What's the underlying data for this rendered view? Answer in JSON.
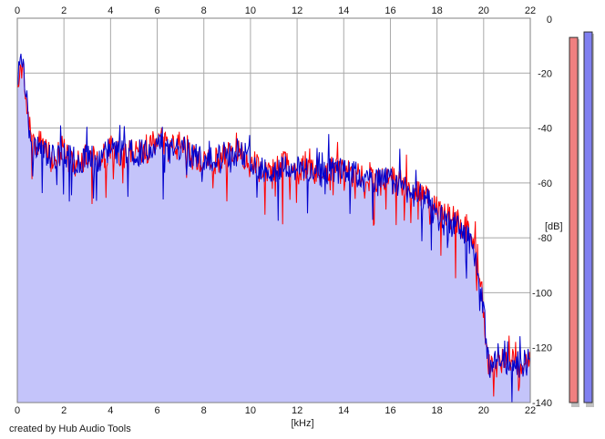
{
  "chart_data": {
    "type": "line",
    "xlabel": "[kHz]",
    "ylabel": "[dB]",
    "xlim": [
      0,
      22
    ],
    "ylim": [
      -140,
      0
    ],
    "x_ticks": [
      0,
      2,
      4,
      6,
      8,
      10,
      12,
      14,
      16,
      18,
      20,
      22
    ],
    "x_tick_labels": [
      "0",
      "2",
      "4",
      "6",
      "8",
      "10",
      "12",
      "14",
      "16",
      "18",
      "20",
      "22"
    ],
    "y_ticks": [
      0,
      -20,
      -40,
      -60,
      -80,
      -100,
      -120,
      -140
    ],
    "y_tick_labels": [
      "0",
      "-20",
      "-40",
      "-60",
      "-80",
      "-100",
      "-120",
      "-140"
    ],
    "grid": true,
    "x_axis_top_labels": true,
    "fill_color": "#c4c4fa",
    "series": [
      {
        "color": "#ff0000",
        "x": [
          0.0,
          0.2,
          0.4,
          0.6,
          0.8,
          1.0,
          1.5,
          2.0,
          2.5,
          3.0,
          3.5,
          4.0,
          4.5,
          5.0,
          5.5,
          6.0,
          6.5,
          7.0,
          7.5,
          8.0,
          8.5,
          9.0,
          9.5,
          10.0,
          10.5,
          11.0,
          11.5,
          12.0,
          12.5,
          13.0,
          13.5,
          14.0,
          14.5,
          15.0,
          15.5,
          16.0,
          16.5,
          17.0,
          17.5,
          18.0,
          18.5,
          19.0,
          19.3,
          19.6,
          19.8,
          20.0,
          20.2,
          20.5,
          21.0,
          21.5,
          22.0
        ],
        "values": [
          -25,
          -17,
          -30,
          -45,
          -48,
          -45,
          -52,
          -47,
          -53,
          -50,
          -52,
          -47,
          -50,
          -48,
          -50,
          -43,
          -48,
          -46,
          -51,
          -53,
          -52,
          -50,
          -48,
          -52,
          -56,
          -55,
          -53,
          -56,
          -54,
          -58,
          -55,
          -56,
          -57,
          -60,
          -58,
          -59,
          -60,
          -63,
          -65,
          -70,
          -72,
          -75,
          -78,
          -80,
          -90,
          -107,
          -125,
          -124,
          -126,
          -125,
          -126
        ]
      },
      {
        "color": "#0000cc",
        "x": [
          0.0,
          0.2,
          0.4,
          0.6,
          0.8,
          1.0,
          1.5,
          2.0,
          2.5,
          3.0,
          3.5,
          4.0,
          4.5,
          5.0,
          5.5,
          6.0,
          6.5,
          7.0,
          7.5,
          8.0,
          8.5,
          9.0,
          9.5,
          10.0,
          10.5,
          11.0,
          11.5,
          12.0,
          12.5,
          13.0,
          13.5,
          14.0,
          14.5,
          15.0,
          15.5,
          16.0,
          16.5,
          17.0,
          17.5,
          18.0,
          18.5,
          19.0,
          19.3,
          19.6,
          19.8,
          20.0,
          20.2,
          20.5,
          21.0,
          21.5,
          22.0
        ],
        "values": [
          -22,
          -16,
          -28,
          -50,
          -47,
          -48,
          -51,
          -49,
          -52,
          -51,
          -51,
          -48,
          -49,
          -49,
          -49,
          -45,
          -49,
          -47,
          -50,
          -52,
          -51,
          -49,
          -49,
          -51,
          -55,
          -55,
          -54,
          -55,
          -55,
          -57,
          -55,
          -56,
          -57,
          -59,
          -59,
          -59,
          -61,
          -64,
          -66,
          -71,
          -74,
          -77,
          -80,
          -85,
          -95,
          -105,
          -127,
          -125,
          -125,
          -126,
          -125
        ]
      }
    ],
    "meters": [
      {
        "color": "#f08080",
        "value": -7
      },
      {
        "color": "#8080f0",
        "value": -5
      }
    ]
  },
  "footer": {
    "credit": "created by Hub Audio Tools"
  }
}
